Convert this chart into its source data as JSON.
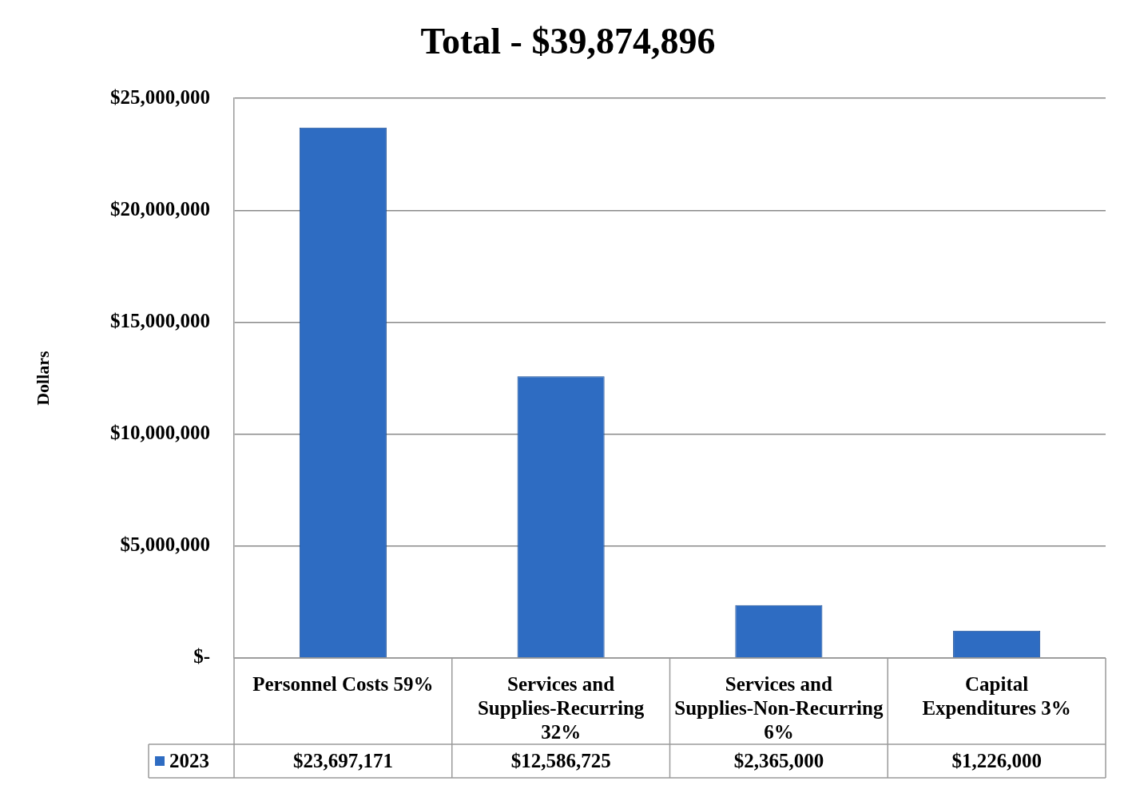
{
  "chart_data": {
    "type": "bar",
    "title": "Total - $39,874,896",
    "ylabel": "Dollars",
    "categories": [
      "Personnel Costs 59%",
      "Services and Supplies-Recurring 32%",
      "Services and Supplies-Non-Recurring 6%",
      "Capital Expenditures 3%"
    ],
    "series": [
      {
        "name": "2023",
        "color": "#2e6cc2",
        "values": [
          23697171,
          12586725,
          2365000,
          1226000
        ]
      }
    ],
    "value_labels": [
      "$23,697,171",
      "$12,586,725",
      "$2,365,000",
      "$1,226,000"
    ],
    "ylim": [
      0,
      25000000
    ],
    "yticks": [
      {
        "value": 0,
        "label": "$-"
      },
      {
        "value": 5000000,
        "label": "$5,000,000"
      },
      {
        "value": 10000000,
        "label": "$10,000,000"
      },
      {
        "value": 15000000,
        "label": "$15,000,000"
      },
      {
        "value": 20000000,
        "label": "$20,000,000"
      },
      {
        "value": 25000000,
        "label": "$25,000,000"
      }
    ],
    "grid": "y",
    "legend": "bottom"
  }
}
